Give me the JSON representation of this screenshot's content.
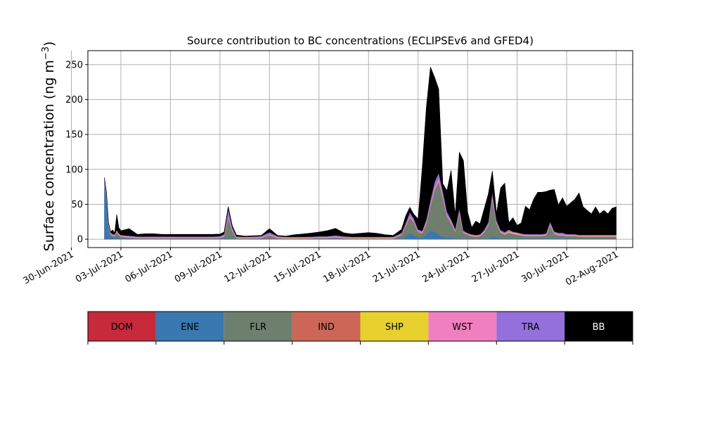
{
  "chart_data": {
    "type": "area",
    "title": "Source contribution to BC concentrations (ECLIPSEv6 and GFED4)",
    "ylabel": "Surface concentration (ng m",
    "ylabel_sup": "−3",
    "ylabel_close": ")",
    "xlabel": "",
    "ylim": [
      -12,
      270
    ],
    "xlim": [
      "2021-07-01T00:00",
      "2021-08-03T00:00"
    ],
    "x_ticks": [
      "30-Jun-2021",
      "03-Jul-2021",
      "06-Jul-2021",
      "09-Jul-2021",
      "12-Jul-2021",
      "15-Jul-2021",
      "18-Jul-2021",
      "21-Jul-2021",
      "24-Jul-2021",
      "27-Jul-2021",
      "30-Jul-2021",
      "02-Aug-2021"
    ],
    "y_ticks": [
      "0",
      "50",
      "100",
      "150",
      "200",
      "250"
    ],
    "grid": true,
    "stacked": true,
    "x": [
      "2021-07-02T00:00",
      "2021-07-02T03:00",
      "2021-07-02T06:00",
      "2021-07-02T09:00",
      "2021-07-02T12:00",
      "2021-07-02T15:00",
      "2021-07-02T18:00",
      "2021-07-02T21:00",
      "2021-07-03T00:00",
      "2021-07-03T12:00",
      "2021-07-04T00:00",
      "2021-07-04T12:00",
      "2021-07-05T00:00",
      "2021-07-05T12:00",
      "2021-07-06T00:00",
      "2021-07-06T12:00",
      "2021-07-07T00:00",
      "2021-07-07T12:00",
      "2021-07-08T00:00",
      "2021-07-08T12:00",
      "2021-07-09T00:00",
      "2021-07-09T06:00",
      "2021-07-09T12:00",
      "2021-07-09T18:00",
      "2021-07-10T00:00",
      "2021-07-10T12:00",
      "2021-07-11T00:00",
      "2021-07-11T12:00",
      "2021-07-12T00:00",
      "2021-07-12T12:00",
      "2021-07-13T00:00",
      "2021-07-13T12:00",
      "2021-07-14T00:00",
      "2021-07-14T12:00",
      "2021-07-15T00:00",
      "2021-07-15T12:00",
      "2021-07-16T00:00",
      "2021-07-16T12:00",
      "2021-07-17T00:00",
      "2021-07-17T12:00",
      "2021-07-18T00:00",
      "2021-07-18T12:00",
      "2021-07-19T00:00",
      "2021-07-19T12:00",
      "2021-07-20T00:00",
      "2021-07-20T06:00",
      "2021-07-20T12:00",
      "2021-07-20T18:00",
      "2021-07-21T00:00",
      "2021-07-21T06:00",
      "2021-07-21T12:00",
      "2021-07-21T18:00",
      "2021-07-22T00:00",
      "2021-07-22T06:00",
      "2021-07-22T12:00",
      "2021-07-22T18:00",
      "2021-07-23T00:00",
      "2021-07-23T06:00",
      "2021-07-23T12:00",
      "2021-07-23T18:00",
      "2021-07-24T00:00",
      "2021-07-24T06:00",
      "2021-07-24T12:00",
      "2021-07-24T18:00",
      "2021-07-25T00:00",
      "2021-07-25T06:00",
      "2021-07-25T12:00",
      "2021-07-25T18:00",
      "2021-07-26T00:00",
      "2021-07-26T06:00",
      "2021-07-26T12:00",
      "2021-07-26T18:00",
      "2021-07-27T00:00",
      "2021-07-27T06:00",
      "2021-07-27T12:00",
      "2021-07-27T18:00",
      "2021-07-28T00:00",
      "2021-07-28T06:00",
      "2021-07-28T12:00",
      "2021-07-28T18:00",
      "2021-07-29T00:00",
      "2021-07-29T06:00",
      "2021-07-29T12:00",
      "2021-07-29T18:00",
      "2021-07-30T00:00",
      "2021-07-30T06:00",
      "2021-07-30T12:00",
      "2021-07-30T18:00",
      "2021-07-31T00:00",
      "2021-07-31T06:00",
      "2021-07-31T12:00",
      "2021-07-31T18:00",
      "2021-08-01T00:00",
      "2021-08-01T06:00",
      "2021-08-01T12:00",
      "2021-08-01T18:00",
      "2021-08-02T00:00"
    ],
    "series": [
      {
        "name": "DOM",
        "color": "#c62a3b",
        "values": [
          1,
          1,
          0.5,
          0.5,
          0.5,
          0.3,
          0.3,
          0.3,
          0.3,
          0.3,
          0.3,
          0.3,
          0.3,
          0.3,
          0.3,
          0.3,
          0.3,
          0.3,
          0.3,
          0.3,
          0.3,
          0.5,
          0.5,
          0.3,
          0.2,
          0.2,
          0.3,
          0.3,
          0.3,
          0.2,
          0.2,
          0.2,
          0.2,
          0.2,
          0.2,
          0.2,
          0.2,
          0.2,
          0.2,
          0.2,
          0.2,
          0.2,
          0.2,
          0.2,
          0.2,
          0.2,
          0.3,
          0.3,
          0.2,
          0.2,
          0.3,
          0.3,
          0.5,
          0.5,
          0.5,
          0.3,
          0.3,
          0.3,
          0.3,
          0.2,
          0.2,
          0.2,
          0.2,
          0.2,
          0.3,
          0.3,
          0.3,
          0.3,
          0.3,
          0.3,
          0.3,
          0.3,
          0.3,
          0.3,
          0.3,
          0.3,
          0.3,
          0.3,
          0.3,
          0.3,
          0.3,
          0.3,
          0.3,
          0.3,
          0.3,
          0.3,
          0.3,
          0.3,
          0.3,
          0.3,
          0.3,
          0.3,
          0.3,
          0.3,
          0.3,
          0.3,
          0.3
        ]
      },
      {
        "name": "ENE",
        "color": "#3978b0",
        "values": [
          80,
          60,
          12,
          4,
          3,
          2,
          4,
          2,
          1,
          1,
          0.5,
          0.5,
          0.5,
          0.5,
          0.5,
          0.5,
          0.5,
          0.5,
          0.5,
          0.5,
          0.5,
          1,
          1,
          0.5,
          0.3,
          0.3,
          0.5,
          0.5,
          0.5,
          0.3,
          0.3,
          0.3,
          0.3,
          0.5,
          0.5,
          0.5,
          0.5,
          0.3,
          0.3,
          0.3,
          0.3,
          0.3,
          0.3,
          0.3,
          1,
          3,
          8,
          5,
          2,
          2,
          6,
          12,
          10,
          6,
          3,
          2,
          2,
          1,
          1,
          0.5,
          1,
          1,
          1,
          1,
          1,
          1,
          3,
          2,
          1,
          1,
          1,
          1,
          1,
          1,
          1,
          1,
          1,
          1,
          1,
          1,
          1,
          1,
          1,
          1,
          1,
          1,
          1,
          1,
          1,
          1,
          1,
          1,
          1,
          1,
          1,
          1,
          1
        ]
      },
      {
        "name": "FLR",
        "color": "#6e7f6e",
        "values": [
          2,
          2,
          6,
          2,
          1,
          2,
          6,
          3,
          2,
          1,
          0.5,
          0.5,
          0.5,
          0.5,
          0.5,
          0.5,
          0.5,
          0.5,
          0.5,
          0.5,
          1,
          2,
          28,
          10,
          1,
          0.5,
          0.5,
          1,
          4,
          1,
          0.5,
          0.5,
          0.5,
          0.5,
          1,
          1,
          2,
          1,
          0.5,
          0.5,
          0.5,
          0.5,
          0.5,
          0.5,
          5,
          15,
          22,
          18,
          8,
          6,
          15,
          35,
          58,
          75,
          55,
          30,
          20,
          10,
          35,
          8,
          5,
          3,
          2,
          3,
          8,
          18,
          55,
          20,
          8,
          5,
          8,
          6,
          5,
          4,
          3,
          3,
          3,
          3,
          3,
          4,
          18,
          6,
          4,
          4,
          3,
          3,
          3,
          2,
          2,
          2,
          2,
          2,
          2,
          2,
          2,
          2,
          2
        ]
      },
      {
        "name": "IND",
        "color": "#cc6656",
        "values": [
          1,
          1,
          1,
          1,
          0.5,
          0.5,
          1,
          1,
          0.5,
          0.5,
          0.3,
          0.3,
          0.3,
          0.3,
          0.3,
          0.3,
          0.3,
          0.3,
          0.3,
          0.3,
          0.3,
          0.5,
          2,
          1,
          0.2,
          0.2,
          0.3,
          0.3,
          1,
          0.5,
          0.2,
          0.2,
          0.2,
          0.2,
          0.3,
          0.3,
          0.5,
          0.3,
          0.2,
          0.2,
          0.2,
          0.2,
          0.2,
          0.2,
          0.5,
          1,
          1,
          1,
          0.5,
          0.5,
          1,
          1,
          2,
          2,
          1.5,
          1,
          1,
          0.5,
          1,
          0.5,
          0.5,
          0.5,
          0.5,
          0.5,
          0.5,
          0.5,
          1,
          0.5,
          0.5,
          0.5,
          0.5,
          0.5,
          0.5,
          0.5,
          0.5,
          0.5,
          0.5,
          0.5,
          0.5,
          0.5,
          0.5,
          0.5,
          0.5,
          0.5,
          0.5,
          0.5,
          0.5,
          0.5,
          0.5,
          0.5,
          0.5,
          0.5,
          0.5,
          0.5,
          0.5,
          0.5,
          0.5
        ]
      },
      {
        "name": "SHP",
        "color": "#e8d02f",
        "values": [
          0.3,
          0.3,
          0.3,
          0.3,
          0.3,
          0.3,
          0.3,
          0.3,
          0.3,
          0.3,
          0.3,
          0.3,
          0.3,
          0.3,
          0.3,
          0.3,
          0.3,
          0.3,
          0.3,
          0.3,
          0.3,
          0.3,
          0.3,
          0.3,
          0.3,
          0.3,
          0.3,
          0.3,
          0.3,
          0.3,
          0.3,
          0.3,
          0.3,
          0.3,
          0.3,
          0.3,
          0.3,
          0.3,
          0.3,
          0.3,
          0.3,
          0.3,
          0.3,
          0.3,
          0.3,
          0.3,
          0.3,
          0.3,
          0.3,
          0.3,
          0.3,
          0.3,
          0.5,
          0.5,
          0.5,
          0.3,
          0.3,
          0.3,
          0.3,
          0.3,
          0.3,
          0.3,
          0.3,
          0.3,
          0.5,
          0.5,
          0.5,
          0.5,
          0.5,
          0.5,
          1,
          1,
          1,
          0.5,
          0.5,
          0.5,
          0.5,
          0.5,
          0.5,
          0.5,
          0.5,
          0.5,
          0.5,
          0.5,
          0.5,
          0.5,
          0.5,
          0.5,
          0.5,
          0.5,
          0.5,
          0.5,
          0.5,
          0.5,
          0.5,
          0.5,
          0.5
        ]
      },
      {
        "name": "WST",
        "color": "#f07fbf",
        "values": [
          1,
          1,
          1,
          1,
          1,
          1,
          1,
          1,
          1,
          1,
          1,
          1,
          1,
          1,
          1,
          1,
          1,
          1,
          1,
          1,
          1,
          1,
          2,
          1,
          1,
          1,
          1,
          1,
          1,
          1,
          1,
          1,
          1,
          1,
          1,
          1,
          1,
          1,
          1,
          1,
          1,
          1,
          1,
          1,
          1,
          1,
          2,
          1,
          1,
          1,
          2,
          2,
          3,
          3,
          3,
          2,
          2,
          1,
          2,
          1,
          1,
          1,
          1,
          1,
          1,
          1,
          2,
          1,
          1,
          1,
          1,
          1,
          1,
          1,
          1,
          1,
          1,
          1,
          1,
          1,
          1,
          1,
          1,
          1,
          1,
          1,
          1,
          1,
          1,
          1,
          1,
          1,
          1,
          1,
          1,
          1,
          1
        ]
      },
      {
        "name": "TRA",
        "color": "#9370db",
        "values": [
          2,
          2,
          2,
          1,
          1,
          1,
          1,
          1,
          1,
          1,
          1,
          1,
          1,
          1,
          1,
          1,
          1,
          1,
          1,
          1,
          1,
          2,
          10,
          4,
          1,
          1,
          1,
          1,
          3,
          1,
          1,
          1,
          1,
          1,
          1,
          1,
          1,
          1,
          1,
          1,
          1,
          1,
          1,
          1,
          1,
          3,
          5,
          4,
          2,
          2,
          4,
          6,
          8,
          8,
          6,
          4,
          3,
          2,
          5,
          2,
          1,
          1,
          1,
          1,
          2,
          3,
          6,
          3,
          2,
          2,
          2,
          1,
          1,
          1,
          1,
          1,
          1,
          1,
          1,
          1,
          4,
          2,
          2,
          2,
          1,
          1,
          1,
          1,
          1,
          1,
          1,
          1,
          1,
          1,
          1,
          1,
          1
        ]
      },
      {
        "name": "BB",
        "color": "#000000",
        "values": [
          1,
          1,
          1,
          1,
          6,
          2,
          22,
          8,
          6,
          10,
          3,
          4,
          4,
          3,
          3,
          3,
          3,
          3,
          3,
          3,
          3,
          3,
          3,
          2,
          2,
          1,
          1,
          1,
          5,
          1,
          1,
          3,
          4,
          5,
          6,
          8,
          10,
          5,
          4,
          5,
          6,
          5,
          3,
          2,
          5,
          10,
          7,
          6,
          15,
          90,
          160,
          190,
          150,
          120,
          10,
          30,
          70,
          20,
          80,
          100,
          30,
          10,
          20,
          15,
          30,
          40,
          30,
          10,
          60,
          70,
          10,
          20,
          10,
          15,
          40,
          35,
          50,
          60,
          60,
          60,
          45,
          60,
          40,
          50,
          40,
          45,
          50,
          60,
          40,
          35,
          30,
          40,
          30,
          35,
          30,
          38,
          40
        ]
      }
    ]
  }
}
